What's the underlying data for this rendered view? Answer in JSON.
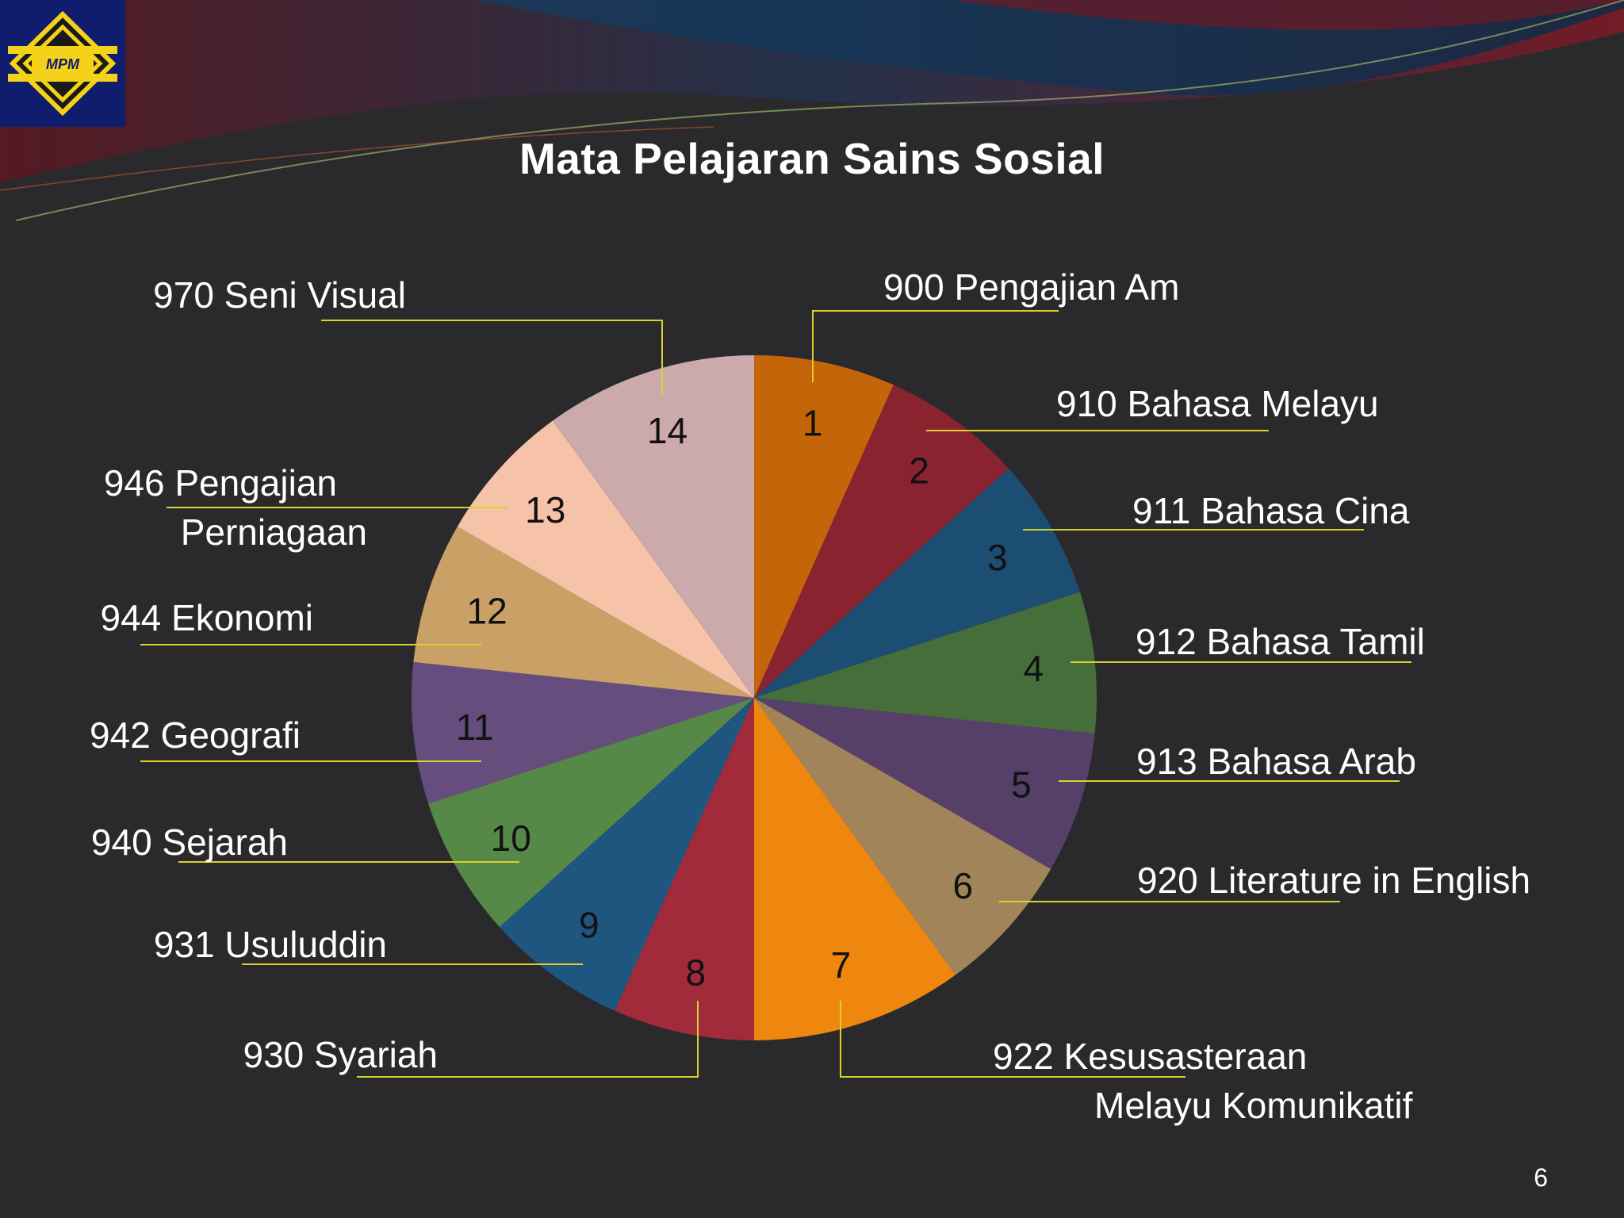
{
  "slide": {
    "logo_text": "MPM",
    "page_number": "6"
  },
  "colors": {
    "background": "#2a2a2d",
    "leader_line": "#d8d22a",
    "label": "#ffffff",
    "number": "#111111"
  },
  "chart_data": {
    "type": "pie",
    "title": "Mata Pelajaran Sains Sosial",
    "legend": "none",
    "slices": [
      {
        "number": "1",
        "label": [
          "900 Pengajian Am"
        ],
        "value": 1,
        "color": "#c5650a"
      },
      {
        "number": "2",
        "label": [
          "910 Bahasa Melayu"
        ],
        "value": 1,
        "color": "#8a2330"
      },
      {
        "number": "3",
        "label": [
          "911 Bahasa Cina"
        ],
        "value": 1,
        "color": "#1c4d72"
      },
      {
        "number": "4",
        "label": [
          "912 Bahasa Tamil"
        ],
        "value": 1,
        "color": "#466e3a"
      },
      {
        "number": "5",
        "label": [
          "913 Bahasa Arab"
        ],
        "value": 1,
        "color": "#56406a"
      },
      {
        "number": "6",
        "label": [
          "920 Literature in English"
        ],
        "value": 1,
        "color": "#a2845a"
      },
      {
        "number": "7",
        "label": [
          "922 Kesusasteraan",
          "Melayu Komunikatif"
        ],
        "value": 1.5,
        "color": "#ef870f"
      },
      {
        "number": "8",
        "label": [
          "930 Syariah"
        ],
        "value": 1,
        "color": "#a12a3b"
      },
      {
        "number": "9",
        "label": [
          "931 Usuluddin"
        ],
        "value": 1,
        "color": "#1f5680"
      },
      {
        "number": "10",
        "label": [
          "940 Sejarah"
        ],
        "value": 1,
        "color": "#568848"
      },
      {
        "number": "11",
        "label": [
          "942 Geografi"
        ],
        "value": 1,
        "color": "#654e7d"
      },
      {
        "number": "12",
        "label": [
          "944 Ekonomi"
        ],
        "value": 1,
        "color": "#c9a066"
      },
      {
        "number": "13",
        "label": [
          "946 Pengajian",
          "Perniagaan"
        ],
        "value": 1,
        "color": "#f6c2a8"
      },
      {
        "number": "14",
        "label": [
          "970 Seni Visual"
        ],
        "value": 1.5,
        "color": "#cca9aa"
      }
    ]
  }
}
